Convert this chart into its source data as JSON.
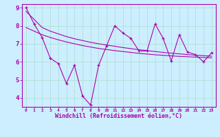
{
  "xlabel": "Windchill (Refroidissement éolien,°C)",
  "ylabel": "",
  "background_color": "#cceeff",
  "grid_color": "#aaddcc",
  "line_color": "#aa00aa",
  "x_hours": [
    0,
    1,
    2,
    3,
    4,
    5,
    6,
    7,
    8,
    9,
    10,
    11,
    12,
    13,
    14,
    15,
    16,
    17,
    18,
    19,
    20,
    21,
    22,
    23
  ],
  "y_main": [
    9.0,
    8.1,
    7.35,
    6.2,
    5.9,
    4.8,
    5.8,
    4.1,
    3.6,
    5.8,
    6.9,
    8.0,
    7.6,
    7.3,
    6.6,
    6.6,
    8.1,
    7.3,
    6.05,
    7.5,
    6.55,
    6.4,
    6.0,
    6.5
  ],
  "y_trend1": [
    8.8,
    8.35,
    7.9,
    7.7,
    7.55,
    7.4,
    7.28,
    7.18,
    7.08,
    7.0,
    6.93,
    6.86,
    6.79,
    6.73,
    6.67,
    6.62,
    6.57,
    6.52,
    6.48,
    6.44,
    6.4,
    6.37,
    6.34,
    6.31
  ],
  "y_trend2": [
    7.9,
    7.7,
    7.5,
    7.35,
    7.22,
    7.1,
    7.0,
    6.9,
    6.82,
    6.74,
    6.68,
    6.62,
    6.57,
    6.52,
    6.47,
    6.43,
    6.39,
    6.36,
    6.33,
    6.3,
    6.28,
    6.26,
    6.24,
    6.22
  ],
  "ylim": [
    3.5,
    9.2
  ],
  "yticks": [
    4,
    5,
    6,
    7,
    8,
    9
  ],
  "xtick_labels": [
    "0",
    "1",
    "2",
    "3",
    "4",
    "5",
    "6",
    "7",
    "8",
    "9",
    "10",
    "11",
    "12",
    "13",
    "14",
    "15",
    "16",
    "17",
    "18",
    "19",
    "20",
    "21",
    "22",
    "23"
  ],
  "figsize": [
    3.2,
    2.0
  ],
  "dpi": 100
}
